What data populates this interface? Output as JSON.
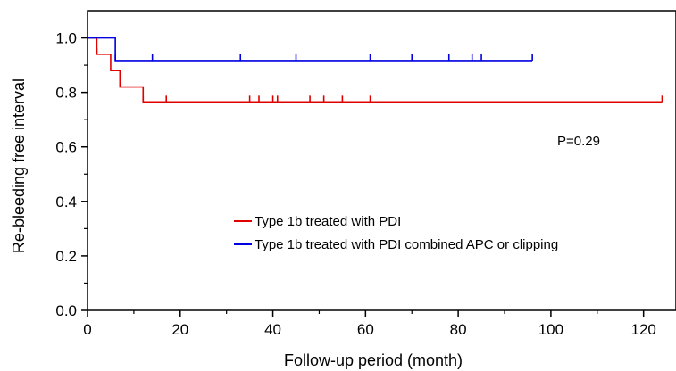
{
  "chart_data": {
    "type": "line",
    "subtype": "kaplan-meier-step",
    "title": "",
    "xlabel": "Follow-up period (month)",
    "ylabel": "Re-bleeding free interval",
    "xlim": [
      0,
      127
    ],
    "ylim": [
      0,
      1.1
    ],
    "x_ticks": [
      0,
      20,
      40,
      60,
      80,
      100,
      120
    ],
    "x_tick_labels": [
      "0",
      "20",
      "40",
      "60",
      "80",
      "100",
      "120"
    ],
    "x_minor_step": 10,
    "y_ticks": [
      0,
      0.2,
      0.4,
      0.6,
      0.8,
      1.0
    ],
    "y_tick_labels": [
      "0.0",
      "0.2",
      "0.4",
      "0.6",
      "0.8",
      "1.0"
    ],
    "y_minor_step": 0.1,
    "grid": false,
    "legend_position": "bottom-center",
    "annotation": "P=0.29",
    "series": [
      {
        "name": "Type 1b treated with PDI",
        "color": "#e00000",
        "steps": [
          {
            "x": 0,
            "y": 1.0
          },
          {
            "x": 2,
            "y": 0.94
          },
          {
            "x": 5,
            "y": 0.88
          },
          {
            "x": 7,
            "y": 0.82
          },
          {
            "x": 12,
            "y": 0.765
          }
        ],
        "end_x": 124,
        "censored": [
          2,
          12,
          17,
          35,
          37,
          40,
          41,
          48,
          51,
          55,
          61,
          124
        ]
      },
      {
        "name": "Type 1b treated with PDI combined APC or clipping",
        "color": "#0000e0",
        "steps": [
          {
            "x": 0,
            "y": 1.0
          },
          {
            "x": 6,
            "y": 0.917
          }
        ],
        "end_x": 96,
        "censored": [
          6,
          14,
          33,
          45,
          61,
          70,
          78,
          83,
          85,
          96
        ]
      }
    ]
  }
}
